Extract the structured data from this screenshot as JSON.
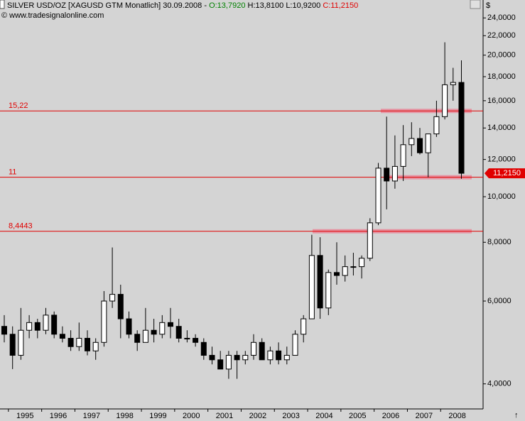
{
  "header": {
    "title": "SILVER USD/OZ [XAGUSD GTM  Monatlich] 30.09.2008 - ",
    "open": "O:13,7920",
    "high_low": "H:13,8100 L:10,9200",
    "close": "C:11,2150",
    "copyright": "© www.tradesignalonline.com",
    "currency": "$",
    "arrow": "↑"
  },
  "chart_data": {
    "type": "candlestick",
    "categories": [
      null,
      "1995",
      null,
      null,
      null,
      "1996",
      null,
      null,
      null,
      "1997",
      null,
      null,
      null,
      "1998",
      null,
      null,
      null,
      "1999",
      null,
      null,
      null,
      "2000",
      null,
      null,
      null,
      "2001",
      null,
      null,
      null,
      "2002",
      null,
      null,
      null,
      "2003",
      null,
      null,
      null,
      "2004",
      null,
      null,
      null,
      "2005",
      null,
      null,
      null,
      "2006",
      null,
      null,
      null,
      "2007",
      null,
      null,
      null,
      "2008",
      null,
      null
    ],
    "open": [
      5.3,
      5.1,
      4.6,
      5.2,
      5.4,
      5.2,
      5.6,
      5.1,
      5.0,
      4.8,
      5.0,
      4.7,
      4.9,
      6.0,
      6.2,
      5.5,
      5.1,
      4.9,
      5.2,
      5.1,
      5.4,
      5.3,
      5.0,
      5.0,
      4.9,
      4.6,
      4.5,
      4.3,
      4.6,
      4.5,
      4.6,
      4.9,
      4.5,
      4.7,
      4.5,
      4.6,
      5.1,
      5.5,
      7.5,
      5.8,
      6.9,
      6.8,
      7.1,
      7.1,
      7.4,
      8.8,
      11.5,
      10.8,
      11.6,
      12.9,
      13.3,
      12.4,
      13.6,
      14.8,
      17.3,
      17.5
    ],
    "high": [
      5.6,
      5.3,
      5.8,
      5.6,
      5.5,
      5.8,
      5.7,
      5.3,
      5.2,
      5.4,
      5.2,
      5.0,
      6.3,
      7.8,
      6.5,
      5.7,
      5.2,
      5.8,
      5.5,
      5.6,
      5.8,
      5.5,
      5.2,
      5.1,
      5.0,
      4.8,
      4.7,
      4.7,
      4.7,
      4.7,
      5.1,
      5.0,
      4.8,
      4.9,
      4.8,
      5.2,
      5.6,
      8.3,
      8.2,
      7.0,
      8.0,
      7.5,
      7.6,
      7.5,
      9.0,
      11.8,
      14.8,
      13.5,
      14.2,
      14.4,
      14.0,
      13.5,
      16.0,
      21.3,
      18.8,
      19.5
    ],
    "low": [
      4.9,
      4.3,
      4.5,
      5.0,
      5.0,
      5.1,
      5.0,
      4.9,
      4.7,
      4.7,
      4.6,
      4.5,
      4.8,
      5.8,
      5.0,
      5.0,
      4.7,
      4.9,
      4.9,
      5.0,
      5.0,
      4.9,
      4.9,
      4.8,
      4.5,
      4.4,
      4.3,
      4.1,
      4.1,
      4.4,
      4.5,
      4.5,
      4.4,
      4.4,
      4.4,
      4.6,
      4.9,
      5.5,
      5.5,
      5.6,
      6.5,
      6.6,
      6.8,
      6.7,
      7.3,
      8.7,
      9.4,
      10.4,
      10.8,
      12.2,
      12.3,
      11.0,
      13.4,
      14.6,
      16.0,
      10.92
    ],
    "close": [
      5.1,
      4.6,
      5.2,
      5.4,
      5.2,
      5.6,
      5.1,
      5.0,
      4.8,
      5.0,
      4.7,
      4.9,
      6.0,
      6.2,
      5.5,
      5.1,
      4.9,
      5.2,
      5.1,
      5.4,
      5.3,
      5.0,
      5.0,
      4.9,
      4.6,
      4.5,
      4.3,
      4.6,
      4.5,
      4.6,
      4.9,
      4.5,
      4.7,
      4.5,
      4.6,
      5.1,
      5.5,
      7.5,
      5.8,
      6.9,
      6.8,
      7.1,
      7.1,
      7.4,
      8.8,
      11.5,
      10.8,
      11.6,
      12.9,
      13.3,
      12.4,
      13.6,
      14.8,
      17.3,
      17.5,
      11.215
    ],
    "last_label": "11,2150",
    "log_scale": true,
    "ylim": [
      3.55,
      26.2
    ],
    "yticks": [
      {
        "value": 4,
        "label": "4,0000"
      },
      {
        "value": 6,
        "label": "6,0000"
      },
      {
        "value": 8,
        "label": "8,0000"
      },
      {
        "value": 10,
        "label": "10,0000"
      },
      {
        "value": 12,
        "label": "12,0000"
      },
      {
        "value": 14,
        "label": "14,0000"
      },
      {
        "value": 16,
        "label": "16,0000"
      },
      {
        "value": 18,
        "label": "18,0000"
      },
      {
        "value": 20,
        "label": "20,0000"
      },
      {
        "value": 22,
        "label": "22,0000"
      },
      {
        "value": 24,
        "label": "24,0000"
      }
    ],
    "levels": [
      {
        "value": 15.22,
        "label": "15,22"
      },
      {
        "value": 11,
        "label": "11"
      },
      {
        "value": 8.4443,
        "label": "8,4443"
      }
    ],
    "up_color": "#ffffff",
    "down_color": "#000000",
    "level_color": "#e00000",
    "zone_color": "#e8889a"
  }
}
